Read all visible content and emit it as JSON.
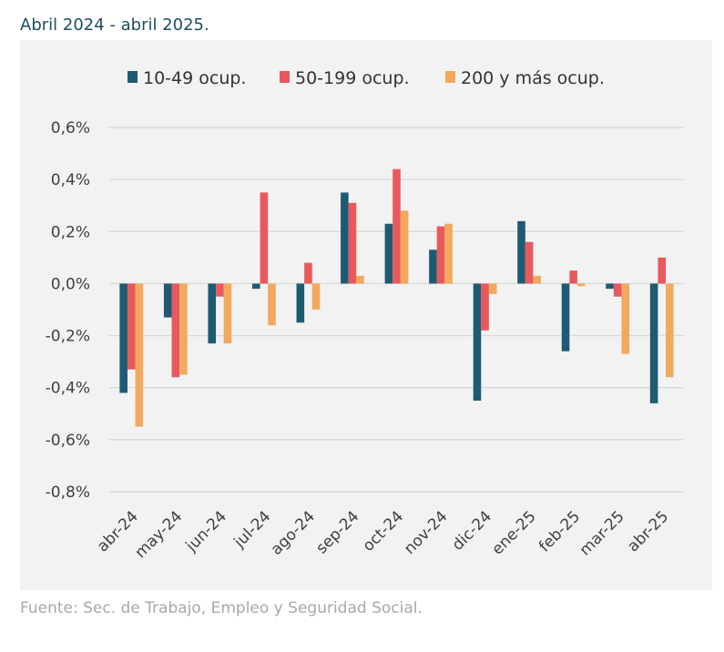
{
  "header": {
    "subtitle": "Abril 2024 - abril 2025."
  },
  "footer": {
    "source": "Fuente: Sec. de Trabajo, Empleo y Seguridad Social."
  },
  "chart_data": {
    "type": "bar",
    "title": "",
    "xlabel": "",
    "ylabel": "",
    "ylim": [
      -0.8,
      0.6
    ],
    "yticks": [
      0.6,
      0.4,
      0.2,
      0.0,
      -0.2,
      -0.4,
      -0.6,
      -0.8
    ],
    "ytick_labels": [
      "0,6%",
      "0,4%",
      "0,2%",
      "0,0%",
      "-0,2%",
      "-0,4%",
      "-0,6%",
      "-0,8%"
    ],
    "categories": [
      "abr-24",
      "may-24",
      "jun-24",
      "jul-24",
      "ago-24",
      "sep-24",
      "oct-24",
      "nov-24",
      "dic-24",
      "ene-25",
      "feb-25",
      "mar-25",
      "abr-25"
    ],
    "legend_position": "top",
    "grid": true,
    "series": [
      {
        "name": "10-49 ocup.",
        "color": "#1f5a73",
        "values": [
          -0.42,
          -0.13,
          -0.23,
          -0.02,
          -0.15,
          0.35,
          0.23,
          0.13,
          -0.45,
          0.24,
          -0.26,
          -0.02,
          -0.46
        ]
      },
      {
        "name": "50-199 ocup.",
        "color": "#e8595e",
        "values": [
          -0.33,
          -0.36,
          -0.05,
          0.35,
          0.08,
          0.31,
          0.44,
          0.22,
          -0.18,
          0.16,
          0.05,
          -0.05,
          0.1
        ]
      },
      {
        "name": "200 y más ocup.",
        "color": "#f2a95e",
        "values": [
          -0.55,
          -0.35,
          -0.23,
          -0.16,
          -0.1,
          0.03,
          0.28,
          0.23,
          -0.04,
          0.03,
          -0.01,
          -0.27,
          -0.36
        ]
      }
    ]
  }
}
